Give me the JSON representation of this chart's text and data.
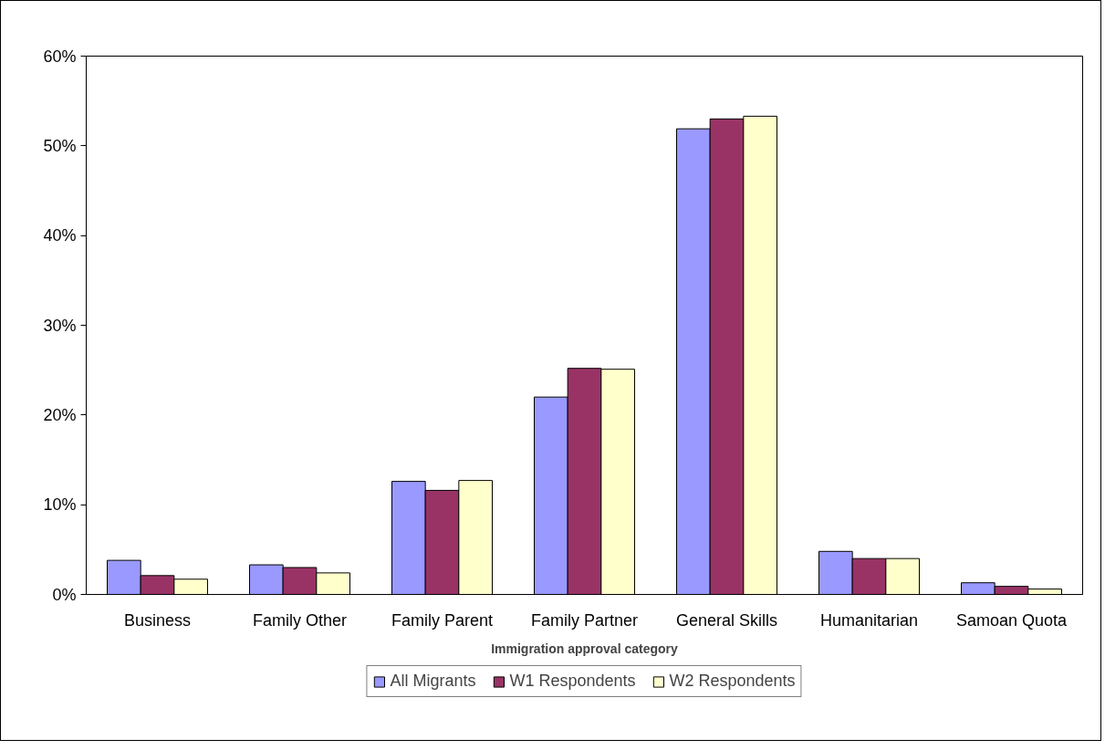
{
  "chart_data": {
    "type": "bar",
    "xlabel": "Immigration approval category",
    "categories": [
      "Business",
      "Family Other",
      "Family Parent",
      "Family Partner",
      "General Skills",
      "Humanitarian",
      "Samoan Quota"
    ],
    "series": [
      {
        "name": "All Migrants",
        "color": "#9999ff",
        "values": [
          3.8,
          3.3,
          12.6,
          22.0,
          51.9,
          4.8,
          1.3
        ]
      },
      {
        "name": "W1 Respondents",
        "color": "#993366",
        "values": [
          2.1,
          3.0,
          11.6,
          25.2,
          53.0,
          4.0,
          0.9
        ]
      },
      {
        "name": "W2 Respondents",
        "color": "#ffffcc",
        "values": [
          1.7,
          2.4,
          12.7,
          25.1,
          53.3,
          4.0,
          0.6
        ]
      }
    ],
    "ylim": [
      0,
      60
    ],
    "yticks": [
      {
        "value": 0,
        "label": "0%"
      },
      {
        "value": 10,
        "label": "10%"
      },
      {
        "value": 20,
        "label": "20%"
      },
      {
        "value": 30,
        "label": "30%"
      },
      {
        "value": 40,
        "label": "40%"
      },
      {
        "value": 50,
        "label": "50%"
      },
      {
        "value": 60,
        "label": "60%"
      }
    ],
    "grid": false,
    "legend": "bottom"
  }
}
